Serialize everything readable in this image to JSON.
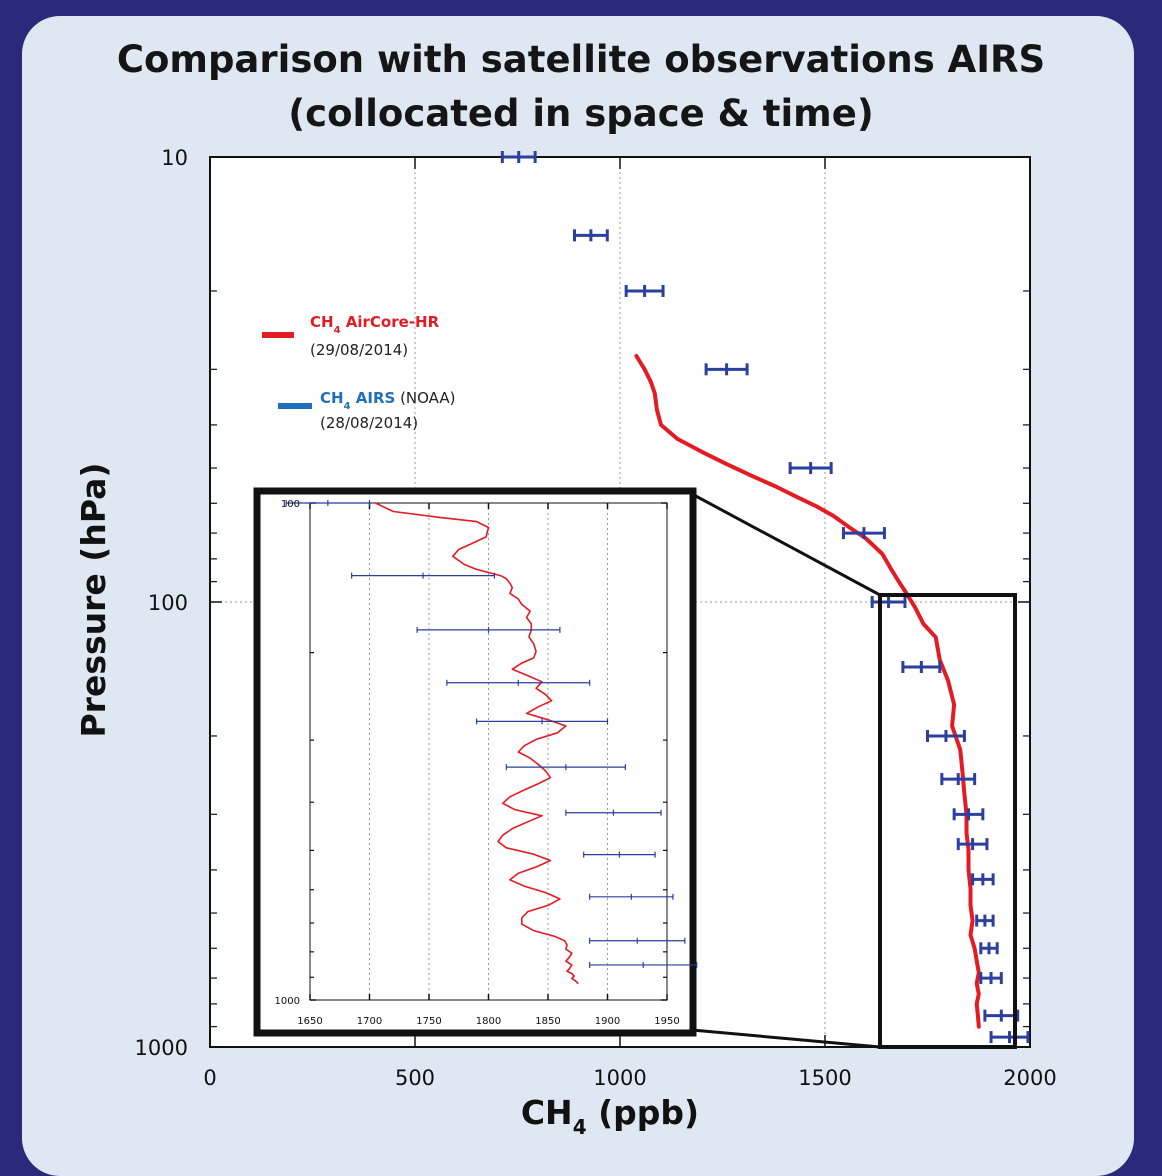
{
  "title": {
    "line1": "Comparison with satellite observations AIRS",
    "line2": "(collocated in space & time)"
  },
  "colors": {
    "aircore": "#e31b23",
    "airs": "#2b3f9e",
    "legend_airs_text": "#1f6fbf",
    "background": "#dfe8f2",
    "frame": "#2a2a7a"
  },
  "chart_data": [
    {
      "type": "scatter",
      "xlabel": {
        "main": "CH",
        "sub": "4",
        "rest": " (ppb)"
      },
      "ylabel": "Pressure (hPa)",
      "xlim": [
        0,
        2000
      ],
      "ylim": [
        10,
        1000
      ],
      "y_scale": "log",
      "y_inverted": true,
      "grid": true,
      "x_ticks": [
        "0",
        "500",
        "1000",
        "1500",
        "2000"
      ],
      "x_tick_values": [
        0,
        500,
        1000,
        1500,
        2000
      ],
      "y_ticks": [
        "10",
        "100",
        "1000"
      ],
      "y_tick_values": [
        10,
        100,
        1000
      ],
      "legend": {
        "position": "upper-left",
        "aircore": {
          "sym": "CH",
          "sub": "4",
          "label": " AirCore-HR",
          "date": "(29/08/2014)"
        },
        "airs": {
          "sym": "CH",
          "sub": "4",
          "label": " AIRS",
          "suffix": " (NOAA)",
          "date": "(28/08/2014)"
        }
      },
      "series": [
        {
          "key": "aircore",
          "type": "line",
          "x": [
            1040,
            1060,
            1075,
            1085,
            1090,
            1100,
            1140,
            1200,
            1260,
            1320,
            1380,
            1430,
            1480,
            1520,
            1560,
            1600,
            1640,
            1660,
            1680,
            1700,
            1720,
            1740,
            1770,
            1780,
            1800,
            1815,
            1810,
            1830,
            1835,
            1840,
            1845,
            1845,
            1850,
            1850,
            1855,
            1855,
            1860,
            1855,
            1865,
            1870,
            1875,
            1870,
            1875,
            1870,
            1873,
            1875
          ],
          "y": [
            28,
            30,
            32,
            34,
            37,
            40,
            43,
            46,
            49,
            52,
            55,
            58,
            61,
            64,
            68,
            72,
            78,
            84,
            90,
            96,
            103,
            112,
            120,
            135,
            150,
            170,
            190,
            215,
            240,
            270,
            300,
            330,
            360,
            400,
            440,
            480,
            520,
            560,
            600,
            640,
            680,
            720,
            760,
            800,
            850,
            900
          ]
        },
        {
          "key": "airs",
          "type": "errorbar",
          "x": [
            753,
            929,
            1060,
            1260,
            1465,
            1595,
            1655,
            1735,
            1795,
            1825,
            1850,
            1860,
            1885,
            1890,
            1900,
            1905,
            1930,
            1950
          ],
          "xerr": [
            40,
            40,
            45,
            50,
            50,
            50,
            40,
            45,
            45,
            40,
            35,
            35,
            25,
            20,
            20,
            25,
            40,
            45
          ],
          "y": [
            10,
            15,
            20,
            30,
            50,
            70,
            100,
            140,
            200,
            250,
            300,
            350,
            420,
            520,
            600,
            700,
            850,
            950
          ]
        }
      ]
    },
    {
      "type": "scatter",
      "role": "inset-zoom",
      "xlim": [
        1650,
        1950
      ],
      "ylim": [
        100,
        1000
      ],
      "y_scale": "log",
      "y_inverted": true,
      "grid": true,
      "x_ticks": [
        "1650",
        "1700",
        "1750",
        "1800",
        "1850",
        "1900",
        "1950"
      ],
      "x_tick_values": [
        1650,
        1700,
        1750,
        1800,
        1850,
        1900,
        1950
      ],
      "y_ticks": [
        "100",
        "1000"
      ],
      "y_tick_values": [
        100,
        1000
      ],
      "series": [
        {
          "key": "aircore",
          "type": "line",
          "x": [
            1705,
            1720,
            1760,
            1790,
            1800,
            1798,
            1785,
            1775,
            1770,
            1780,
            1790,
            1800,
            1810,
            1815,
            1818,
            1820,
            1818,
            1825,
            1828,
            1835,
            1832,
            1836,
            1836,
            1834,
            1838,
            1840,
            1838,
            1828,
            1820,
            1832,
            1845,
            1840,
            1848,
            1853,
            1842,
            1832,
            1850,
            1865,
            1858,
            1840,
            1830,
            1825,
            1835,
            1842,
            1848,
            1852,
            1842,
            1830,
            1818,
            1812,
            1822,
            1845,
            1832,
            1820,
            1812,
            1808,
            1815,
            1838,
            1852,
            1840,
            1825,
            1818,
            1830,
            1848,
            1860,
            1850,
            1833,
            1828,
            1828,
            1838,
            1856,
            1864,
            1866,
            1865,
            1870,
            1868,
            1865,
            1870,
            1868,
            1866,
            1870,
            1872,
            1870,
            1873,
            1875
          ],
          "y": [
            100,
            104,
            107,
            109,
            112,
            117,
            121,
            124,
            128,
            133,
            136,
            138,
            140,
            142,
            145,
            148,
            152,
            156,
            160,
            165,
            170,
            175,
            180,
            186,
            192,
            199,
            205,
            210,
            216,
            222,
            229,
            236,
            243,
            250,
            257,
            265,
            273,
            281,
            290,
            299,
            308,
            317,
            326,
            336,
            346,
            357,
            367,
            378,
            390,
            402,
            414,
            426,
            439,
            452,
            466,
            480,
            494,
            509,
            524,
            540,
            556,
            573,
            590,
            608,
            626,
            645,
            664,
            684,
            704,
            725,
            745,
            760,
            775,
            790,
            805,
            820,
            835,
            850,
            865,
            875,
            885,
            895,
            905,
            915,
            925
          ]
        },
        {
          "key": "airs",
          "type": "errorbar",
          "x": [
            1665,
            1745,
            1800,
            1825,
            1845,
            1865,
            1905,
            1910,
            1920,
            1925,
            1930
          ],
          "xerr": [
            35,
            60,
            60,
            60,
            55,
            50,
            40,
            30,
            35,
            40,
            45
          ],
          "y": [
            100,
            140,
            180,
            230,
            275,
            340,
            420,
            510,
            620,
            760,
            850
          ]
        }
      ]
    }
  ]
}
